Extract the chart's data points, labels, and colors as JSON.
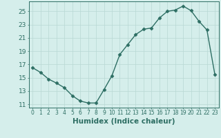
{
  "x": [
    0,
    1,
    2,
    3,
    4,
    5,
    6,
    7,
    8,
    9,
    10,
    11,
    12,
    13,
    14,
    15,
    16,
    17,
    18,
    19,
    20,
    21,
    22,
    23
  ],
  "y": [
    16.5,
    15.8,
    14.8,
    14.2,
    13.5,
    12.3,
    11.5,
    11.2,
    11.2,
    13.2,
    15.3,
    18.5,
    20.0,
    21.5,
    22.3,
    22.5,
    24.0,
    25.0,
    25.2,
    25.8,
    25.1,
    23.5,
    22.2,
    15.5
  ],
  "line_color": "#2d6e63",
  "marker": "D",
  "markersize": 2.5,
  "linewidth": 1.0,
  "xlabel": "Humidex (Indice chaleur)",
  "xlim": [
    -0.5,
    23.5
  ],
  "ylim": [
    10.5,
    26.5
  ],
  "yticks": [
    11,
    13,
    15,
    17,
    19,
    21,
    23,
    25
  ],
  "xticks": [
    0,
    1,
    2,
    3,
    4,
    5,
    6,
    7,
    8,
    9,
    10,
    11,
    12,
    13,
    14,
    15,
    16,
    17,
    18,
    19,
    20,
    21,
    22,
    23
  ],
  "bg_color": "#d5eeeb",
  "grid_color": "#b8d8d4",
  "tick_color": "#2d6e63",
  "label_color": "#2d6e63",
  "xlabel_fontsize": 7.5,
  "ytick_fontsize": 6.5,
  "xtick_fontsize": 5.5
}
